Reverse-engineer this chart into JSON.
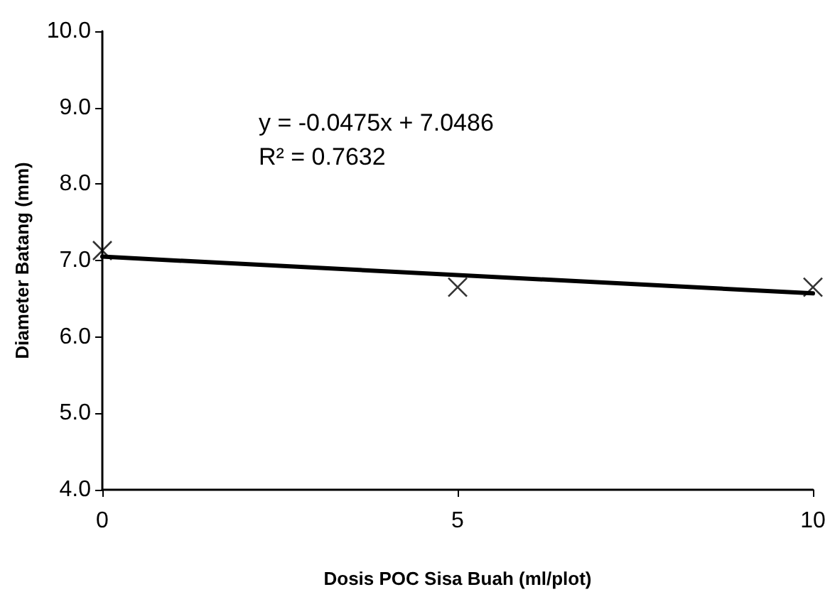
{
  "chart_data": {
    "type": "scatter",
    "xlabel": "Dosis POC Sisa Buah (ml/plot)",
    "ylabel": "Diameter Batang (mm)",
    "x": [
      0,
      5,
      10
    ],
    "series": [
      {
        "color": "#000000",
        "values": [
          7.13,
          6.65,
          6.65
        ],
        "marker": "cross"
      },
      {
        "type": "line",
        "color": "#000000",
        "x": [
          0,
          10
        ],
        "values": [
          7.05,
          6.57
        ],
        "marker": "none"
      }
    ],
    "xlim": [
      0,
      10
    ],
    "xticks": [
      0,
      5,
      10
    ],
    "ylim": [
      4,
      10
    ],
    "yticks": [
      {
        "value": 4,
        "label": "4.0"
      },
      {
        "value": 5,
        "label": "5.0"
      },
      {
        "value": 6,
        "label": "6.0"
      },
      {
        "value": 7,
        "label": "7.0"
      },
      {
        "value": 8,
        "label": "8.0"
      },
      {
        "value": 9,
        "label": "9.0"
      },
      {
        "value": 10,
        "label": "10.0"
      }
    ],
    "annotations": [
      "y = -0.0475x + 7.0486",
      "R² = 0.7632"
    ],
    "grid": false
  }
}
